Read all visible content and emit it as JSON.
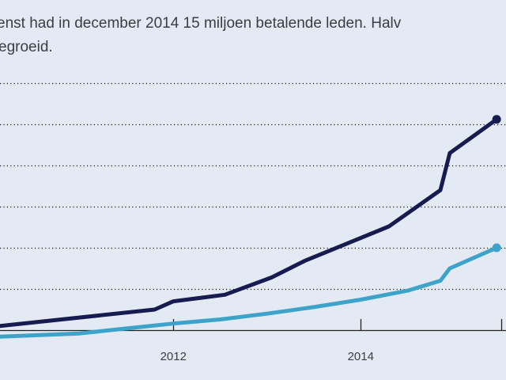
{
  "subtitle": {
    "line1": "enst had in december 2014 15 miljoen betalende leden. Halv",
    "line2": "egroeid."
  },
  "colors": {
    "background": "#e4eaf4",
    "series_dark": "#161b50",
    "series_light": "#3ea3c9",
    "grid": "#1a1a1a",
    "axis": "#222222"
  },
  "chart_data": {
    "type": "line",
    "title": "",
    "xlabel": "",
    "ylabel": "",
    "xlim": [
      2010.15,
      2015.55
    ],
    "ylim": [
      0,
      30
    ],
    "grid": true,
    "legend": "none",
    "gridlines": [
      5,
      10,
      15,
      20,
      25,
      30
    ],
    "xticks": [
      {
        "value": 2012,
        "label": "2012"
      },
      {
        "value": 2014,
        "label": "2014"
      }
    ],
    "xtick_marks": [
      2012,
      2014,
      2015.5
    ],
    "series": [
      {
        "name": "dark-series",
        "color": "#161b50",
        "end_marker": true,
        "x": [
          2010.15,
          2011.8,
          2012.0,
          2012.55,
          2013.05,
          2013.4,
          2013.85,
          2014.3,
          2014.85,
          2014.95,
          2015.45
        ],
        "y": [
          0.5,
          2.5,
          3.5,
          4.3,
          6.4,
          8.4,
          10.5,
          12.6,
          17.0,
          21.5,
          25.6
        ]
      },
      {
        "name": "light-series",
        "color": "#3ea3c9",
        "end_marker": true,
        "x": [
          2010.15,
          2011.0,
          2011.5,
          2012.0,
          2012.5,
          2013.0,
          2013.5,
          2014.0,
          2014.5,
          2014.85,
          2014.95,
          2015.45
        ],
        "y": [
          -0.8,
          -0.4,
          0.2,
          0.8,
          1.3,
          2.0,
          2.8,
          3.7,
          4.8,
          6.0,
          7.5,
          10.0
        ]
      }
    ]
  }
}
